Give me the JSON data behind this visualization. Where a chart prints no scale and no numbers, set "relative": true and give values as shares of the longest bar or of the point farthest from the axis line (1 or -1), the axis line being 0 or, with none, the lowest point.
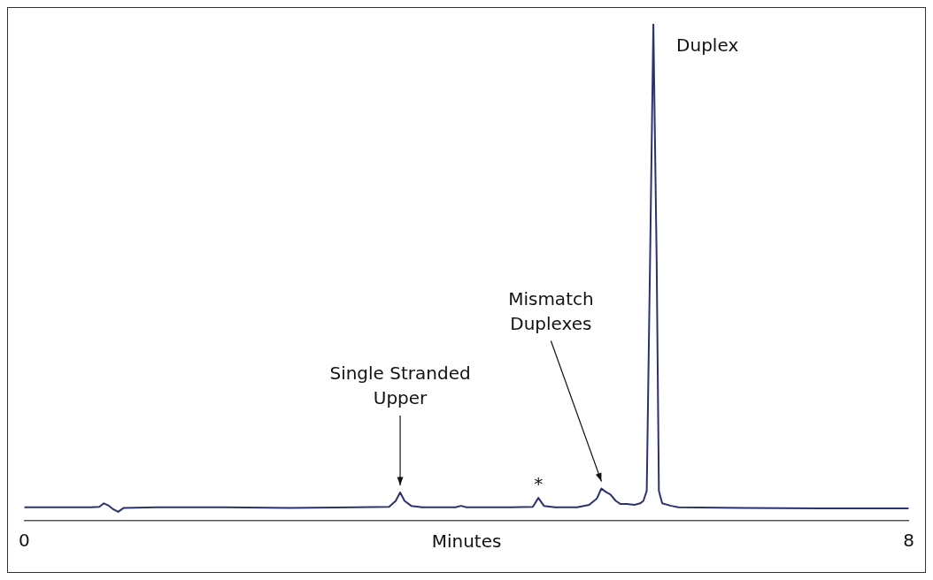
{
  "chart_data": {
    "type": "line",
    "relative": true,
    "xlabel": "Minutes",
    "xlim": [
      0,
      8
    ],
    "xticks": [
      0,
      8
    ],
    "grid": false,
    "legend": false,
    "marker": "none",
    "line_style": "solid",
    "series": [
      {
        "color": "#2b3270",
        "x": [
          0,
          0.3,
          0.6,
          0.68,
          0.72,
          0.76,
          0.8,
          0.85,
          0.9,
          1.2,
          1.8,
          2.4,
          3.0,
          3.3,
          3.36,
          3.4,
          3.44,
          3.5,
          3.6,
          3.9,
          3.95,
          4.0,
          4.4,
          4.6,
          4.65,
          4.7,
          4.8,
          5.0,
          5.11,
          5.18,
          5.22,
          5.26,
          5.3,
          5.35,
          5.39,
          5.45,
          5.52,
          5.57,
          5.6,
          5.63,
          5.66,
          5.69,
          5.72,
          5.74,
          5.77,
          5.85,
          5.92,
          6.5,
          7.2,
          8
        ],
        "values": [
          0.027,
          0.027,
          0.027,
          0.028,
          0.035,
          0.031,
          0.024,
          0.018,
          0.026,
          0.027,
          0.027,
          0.026,
          0.027,
          0.028,
          0.04,
          0.057,
          0.04,
          0.03,
          0.027,
          0.027,
          0.03,
          0.027,
          0.027,
          0.028,
          0.046,
          0.03,
          0.027,
          0.027,
          0.032,
          0.045,
          0.065,
          0.058,
          0.053,
          0.04,
          0.034,
          0.034,
          0.032,
          0.035,
          0.04,
          0.06,
          0.52,
          1,
          0.52,
          0.06,
          0.035,
          0.03,
          0.027,
          0.026,
          0.025,
          0.025
        ]
      }
    ],
    "annotations": [
      {
        "text": "Single Stranded Upper",
        "x": 3.4,
        "y": 0.057
      },
      {
        "text": "*",
        "x": 4.65,
        "y": 0.046
      },
      {
        "text": "Mismatch Duplexes",
        "x": 5.22,
        "y": 0.065
      },
      {
        "text": "Duplex",
        "x": 5.69,
        "y": 1
      }
    ]
  }
}
